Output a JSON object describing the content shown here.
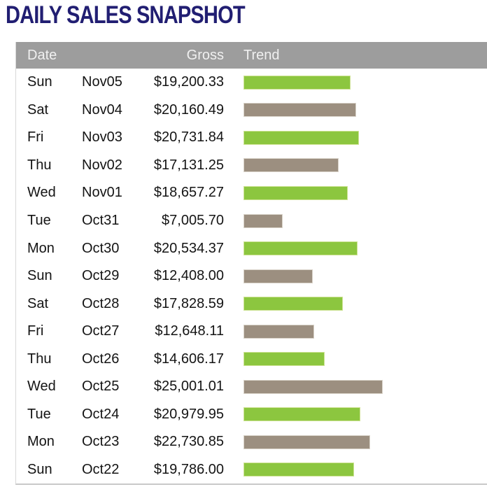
{
  "title": "DAILY SALES SNAPSHOT",
  "table": {
    "columns": [
      "Date",
      "Gross",
      "Trend"
    ],
    "rows": [
      {
        "day": "Sun",
        "date": "Nov05",
        "gross": "$19,200.33",
        "value": 19200.33,
        "bar_color": "green"
      },
      {
        "day": "Sat",
        "date": "Nov04",
        "gross": "$20,160.49",
        "value": 20160.49,
        "bar_color": "taupe"
      },
      {
        "day": "Fri",
        "date": "Nov03",
        "gross": "$20,731.84",
        "value": 20731.84,
        "bar_color": "green"
      },
      {
        "day": "Thu",
        "date": "Nov02",
        "gross": "$17,131.25",
        "value": 17131.25,
        "bar_color": "taupe"
      },
      {
        "day": "Wed",
        "date": "Nov01",
        "gross": "$18,657.27",
        "value": 18657.27,
        "bar_color": "green"
      },
      {
        "day": "Tue",
        "date": "Oct31",
        "gross": "$7,005.70",
        "value": 7005.7,
        "bar_color": "taupe"
      },
      {
        "day": "Mon",
        "date": "Oct30",
        "gross": "$20,534.37",
        "value": 20534.37,
        "bar_color": "green"
      },
      {
        "day": "Sun",
        "date": "Oct29",
        "gross": "$12,408.00",
        "value": 12408.0,
        "bar_color": "taupe"
      },
      {
        "day": "Sat",
        "date": "Oct28",
        "gross": "$17,828.59",
        "value": 17828.59,
        "bar_color": "green"
      },
      {
        "day": "Fri",
        "date": "Oct27",
        "gross": "$12,648.11",
        "value": 12648.11,
        "bar_color": "taupe"
      },
      {
        "day": "Thu",
        "date": "Oct26",
        "gross": "$14,606.17",
        "value": 14606.17,
        "bar_color": "green"
      },
      {
        "day": "Wed",
        "date": "Oct25",
        "gross": "$25,001.01",
        "value": 25001.01,
        "bar_color": "taupe"
      },
      {
        "day": "Tue",
        "date": "Oct24",
        "gross": "$20,979.95",
        "value": 20979.95,
        "bar_color": "green"
      },
      {
        "day": "Mon",
        "date": "Oct23",
        "gross": "$22,730.85",
        "value": 22730.85,
        "bar_color": "taupe"
      },
      {
        "day": "Sun",
        "date": "Oct22",
        "gross": "$19,786.00",
        "value": 19786.0,
        "bar_color": "green"
      }
    ]
  },
  "colors": {
    "green": "#8CC63F",
    "taupe": "#9C8F80",
    "header_bg": "#9D9D9D",
    "header_text": "#F0F0F0",
    "title_text": "#211E72",
    "body_text": "#141414",
    "table_border": "#C9C9C9"
  },
  "chart_data": {
    "type": "bar",
    "orientation": "horizontal",
    "title": "DAILY SALES SNAPSHOT",
    "categories": [
      "Sun Nov05",
      "Sat Nov04",
      "Fri Nov03",
      "Thu Nov02",
      "Wed Nov01",
      "Tue Oct31",
      "Mon Oct30",
      "Sun Oct29",
      "Sat Oct28",
      "Fri Oct27",
      "Thu Oct26",
      "Wed Oct25",
      "Tue Oct24",
      "Mon Oct23",
      "Sun Oct22"
    ],
    "values": [
      19200.33,
      20160.49,
      20731.84,
      17131.25,
      18657.27,
      7005.7,
      20534.37,
      12408.0,
      17828.59,
      12648.11,
      14606.17,
      25001.01,
      20979.95,
      22730.85,
      19786.0
    ],
    "value_labels": [
      "$19,200.33",
      "$20,160.49",
      "$20,731.84",
      "$17,131.25",
      "$18,657.27",
      "$7,005.70",
      "$20,534.37",
      "$12,408.00",
      "$17,828.59",
      "$12,648.11",
      "$14,606.17",
      "$25,001.01",
      "$20,979.95",
      "$22,730.85",
      "$19,786.00"
    ],
    "bar_colors": [
      "#8CC63F",
      "#9C8F80",
      "#8CC63F",
      "#9C8F80",
      "#8CC63F",
      "#9C8F80",
      "#8CC63F",
      "#9C8F80",
      "#8CC63F",
      "#9C8F80",
      "#8CC63F",
      "#9C8F80",
      "#8CC63F",
      "#9C8F80",
      "#8CC63F"
    ],
    "xlim": [
      0,
      25001.01
    ],
    "xlabel": "",
    "ylabel": "",
    "legend": false,
    "grid": false,
    "note": "Bar length proportional to gross; colors alternate green/taupe by row"
  }
}
